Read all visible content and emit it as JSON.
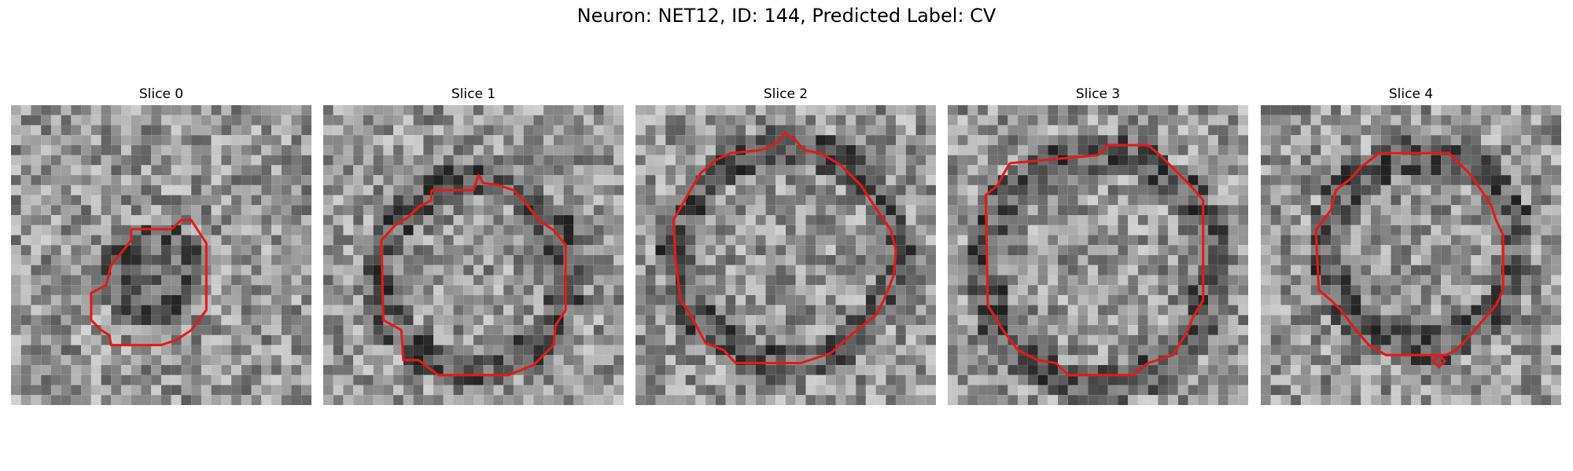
{
  "figure": {
    "title": "Neuron: NET12, ID: 144, Predicted Label: CV"
  },
  "panels": [
    {
      "title": "Slice 0"
    },
    {
      "title": "Slice 1"
    },
    {
      "title": "Slice 2"
    },
    {
      "title": "Slice 3"
    },
    {
      "title": "Slice 4"
    }
  ],
  "colors": {
    "contour": "#e31a1c",
    "background": "#ffffff"
  }
}
